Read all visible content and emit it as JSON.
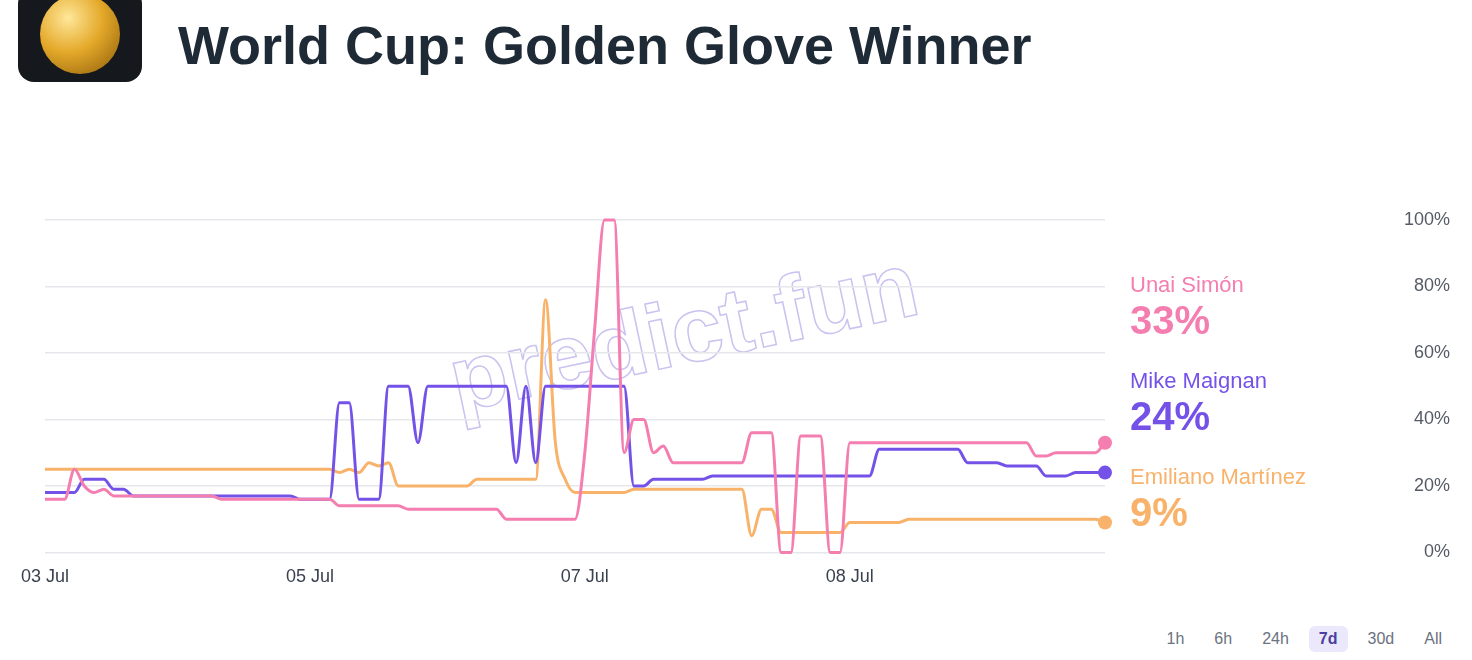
{
  "chart_data": {
    "type": "line",
    "title": "World Cup: Golden Glove Winner",
    "categories": [
      "03 Jul",
      null,
      null,
      null,
      null,
      null,
      null,
      null,
      null,
      null,
      null,
      null,
      null,
      null,
      null,
      null,
      null,
      null,
      null,
      null,
      null,
      null,
      null,
      null,
      null,
      null,
      null,
      "05 Jul",
      null,
      null,
      null,
      null,
      null,
      null,
      null,
      null,
      null,
      null,
      null,
      null,
      null,
      null,
      null,
      null,
      null,
      null,
      null,
      null,
      null,
      null,
      null,
      null,
      null,
      null,
      null,
      "07 Jul",
      null,
      null,
      null,
      null,
      null,
      null,
      null,
      null,
      null,
      null,
      null,
      null,
      null,
      null,
      null,
      null,
      null,
      null,
      null,
      null,
      null,
      null,
      null,
      null,
      null,
      null,
      "08 Jul",
      null,
      null,
      null,
      null,
      null,
      null,
      null,
      null,
      null,
      null,
      null,
      null,
      null,
      null,
      null,
      null,
      null,
      null,
      null,
      null,
      null,
      null,
      null,
      null,
      null,
      null
    ],
    "series": [
      {
        "name": "Unai Simón",
        "color": "#f47eb0",
        "end_label": "33%",
        "values": [
          16,
          16,
          16,
          25,
          20,
          18,
          19,
          17,
          17,
          17,
          17,
          17,
          17,
          17,
          17,
          17,
          17,
          17,
          16,
          16,
          16,
          16,
          16,
          16,
          16,
          16,
          16,
          16,
          16,
          16,
          14,
          14,
          14,
          14,
          14,
          14,
          14,
          13,
          13,
          13,
          13,
          13,
          13,
          13,
          13,
          13,
          13,
          10,
          10,
          10,
          10,
          10,
          10,
          10,
          10,
          30,
          67,
          100,
          100,
          30,
          40,
          40,
          30,
          32,
          27,
          27,
          27,
          27,
          27,
          27,
          27,
          27,
          36,
          36,
          36,
          0,
          0,
          35,
          35,
          35,
          0,
          0,
          33,
          33,
          33,
          33,
          33,
          33,
          33,
          33,
          33,
          33,
          33,
          33,
          33,
          33,
          33,
          33,
          33,
          33,
          33,
          29,
          29,
          30,
          30,
          30,
          30,
          30,
          33
        ]
      },
      {
        "name": "Mike Maignan",
        "color": "#7452e8",
        "end_label": "24%",
        "values": [
          18,
          18,
          18,
          18,
          22,
          22,
          22,
          19,
          19,
          17,
          17,
          17,
          17,
          17,
          17,
          17,
          17,
          17,
          17,
          17,
          17,
          17,
          17,
          17,
          17,
          17,
          16,
          16,
          16,
          16,
          45,
          45,
          16,
          16,
          16,
          50,
          50,
          50,
          33,
          50,
          50,
          50,
          50,
          50,
          50,
          50,
          50,
          50,
          27,
          50,
          27,
          50,
          50,
          50,
          50,
          50,
          50,
          50,
          50,
          50,
          20,
          20,
          22,
          22,
          22,
          22,
          22,
          22,
          23,
          23,
          23,
          23,
          23,
          23,
          23,
          23,
          23,
          23,
          23,
          23,
          23,
          23,
          23,
          23,
          23,
          31,
          31,
          31,
          31,
          31,
          31,
          31,
          31,
          31,
          27,
          27,
          27,
          27,
          26,
          26,
          26,
          26,
          23,
          23,
          23,
          24,
          24,
          24,
          24
        ]
      },
      {
        "name": "Emiliano Martínez",
        "color": "#f8b26a",
        "end_label": "9%",
        "values": [
          25,
          25,
          25,
          25,
          25,
          25,
          25,
          25,
          25,
          25,
          25,
          25,
          25,
          25,
          25,
          25,
          25,
          25,
          25,
          25,
          25,
          25,
          25,
          25,
          25,
          25,
          25,
          25,
          25,
          25,
          24,
          25,
          24,
          27,
          26,
          27,
          20,
          20,
          20,
          20,
          20,
          20,
          20,
          20,
          22,
          22,
          22,
          22,
          22,
          22,
          22,
          76,
          33,
          22,
          18,
          18,
          18,
          18,
          18,
          18,
          19,
          19,
          19,
          19,
          19,
          19,
          19,
          19,
          19,
          19,
          19,
          19,
          5,
          13,
          13,
          6,
          6,
          6,
          6,
          6,
          6,
          6,
          9,
          9,
          9,
          9,
          9,
          9,
          10,
          10,
          10,
          10,
          10,
          10,
          10,
          10,
          10,
          10,
          10,
          10,
          10,
          10,
          10,
          10,
          10,
          10,
          10,
          10,
          9
        ]
      }
    ],
    "ylim": [
      0,
      100
    ],
    "yticks": [
      {
        "value": 0,
        "label": "0%"
      },
      {
        "value": 20,
        "label": "20%"
      },
      {
        "value": 40,
        "label": "40%"
      },
      {
        "value": 60,
        "label": "60%"
      },
      {
        "value": 80,
        "label": "80%"
      },
      {
        "value": 100,
        "label": "100%"
      }
    ],
    "grid": "y"
  },
  "watermark": "predict.fun",
  "range_buttons": [
    "1h",
    "6h",
    "24h",
    "7d",
    "30d",
    "All"
  ],
  "selected_range": "7d"
}
